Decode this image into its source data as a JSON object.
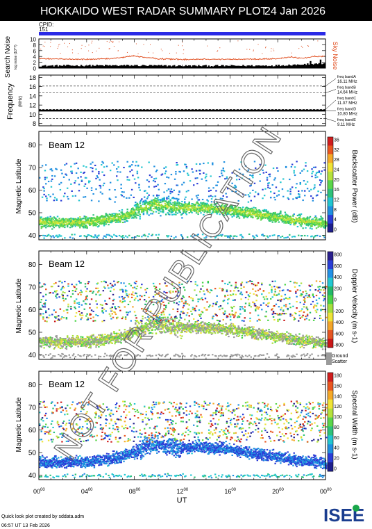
{
  "header": {
    "title": "HOKKAIDO WEST RADAR SUMMARY PLOT",
    "date": "24 Jan 2026",
    "cpid_label": "CPID:",
    "cpid_value": "151"
  },
  "watermark": "NOT FOR PUBLICATION",
  "colors": {
    "cpid_bar": "#2a2ae6",
    "noise_sky": "#e04a1a",
    "noise_search": "#000000",
    "ground_scatter": "#9a9a9a"
  },
  "chart_data": [
    {
      "type": "area",
      "panel": "noise",
      "ylabel": "Search Noise",
      "ylabel_sub": "log noise (10^?)",
      "right_label": "Sky Noise",
      "yticks": [
        "0",
        "2",
        "4",
        "6",
        "8",
        "10"
      ],
      "ylim": [
        0,
        10
      ],
      "xlim": [
        0,
        24
      ],
      "series": [
        {
          "name": "Sky Noise",
          "x": [
            0,
            2,
            4,
            6,
            8,
            9,
            10,
            12,
            14,
            16,
            18,
            20,
            21,
            22,
            23,
            24
          ],
          "values": [
            3.3,
            3.1,
            3.0,
            3.2,
            4.2,
            3.6,
            3.2,
            3.0,
            3.1,
            3.0,
            3.1,
            3.2,
            3.8,
            3.4,
            3.9,
            4.1
          ]
        },
        {
          "name": "Search Noise",
          "x": [
            0,
            4,
            8,
            12,
            16,
            20,
            22,
            24
          ],
          "values": [
            0.5,
            0.6,
            0.6,
            0.5,
            0.5,
            0.6,
            1.0,
            1.2
          ]
        }
      ]
    },
    {
      "type": "line",
      "panel": "frequency",
      "ylabel": "Frequency",
      "ylabel_unit": "(MHz)",
      "yticks": [
        "8",
        "10",
        "12",
        "14",
        "16",
        "18"
      ],
      "ylim": [
        7.5,
        18.5
      ],
      "bands": [
        {
          "label": "freq bandA",
          "value": "16.11 MHz",
          "mhz": 16.11
        },
        {
          "label": "freq bandB",
          "value": "14.64 MHz",
          "mhz": 14.64
        },
        {
          "label": "freq bandC",
          "value": "11.07 MHz",
          "mhz": 11.07
        },
        {
          "label": "freq bandD",
          "value": "10.80 MHz",
          "mhz": 10.8
        },
        {
          "label": "freq bandE",
          "value": "9.11 MHz",
          "mhz": 9.11
        }
      ],
      "series": [
        {
          "x": [
            0,
            24
          ],
          "values": [
            10.8,
            10.8
          ]
        }
      ]
    },
    {
      "type": "heatmap",
      "panel": "power",
      "beam_label": "Beam 12",
      "ylabel": "Magnetic Latitude",
      "yticks": [
        "40",
        "50",
        "60",
        "70",
        "80"
      ],
      "ylim": [
        38,
        86
      ],
      "colorbar_label": "Backscatter Power (dB)",
      "colorbar_ticks": [
        "0",
        "4",
        "8",
        "12",
        "16",
        "20",
        "24",
        "28",
        "32",
        "36"
      ],
      "band_center": [
        [
          0,
          46
        ],
        [
          4,
          46
        ],
        [
          7,
          48.5
        ],
        [
          9.5,
          54
        ],
        [
          11.5,
          52.5
        ],
        [
          14,
          52.5
        ],
        [
          16,
          51.5
        ],
        [
          19,
          49
        ],
        [
          22,
          46.5
        ],
        [
          24,
          45.5
        ]
      ]
    },
    {
      "type": "heatmap",
      "panel": "velocity",
      "beam_label": "Beam 12",
      "ylabel": "Magnetic Latitude",
      "yticks": [
        "40",
        "50",
        "60",
        "70",
        "80"
      ],
      "ylim": [
        38,
        86
      ],
      "colorbar_label": "Doppler Velocity (m s-1)",
      "colorbar_ticks": [
        "800",
        "600",
        "400",
        "200",
        "0",
        "-200",
        "-400",
        "-600",
        "-800"
      ],
      "gs_label_1": "Ground",
      "gs_label_2": "Scatter"
    },
    {
      "type": "heatmap",
      "panel": "width",
      "beam_label": "Beam 12",
      "ylabel": "Magnetic Latitude",
      "yticks": [
        "40",
        "50",
        "60",
        "70",
        "80"
      ],
      "ylim": [
        38,
        86
      ],
      "colorbar_label": "Spectral Width (m s-1)",
      "colorbar_ticks": [
        "0",
        "20",
        "40",
        "60",
        "80",
        "100",
        "120",
        "140",
        "160",
        "180"
      ]
    }
  ],
  "xaxis": {
    "label": "UT",
    "ticks": [
      {
        "h": 0,
        "base": "00",
        "sup": "00"
      },
      {
        "h": 4,
        "base": "04",
        "sup": "00"
      },
      {
        "h": 8,
        "base": "08",
        "sup": "00"
      },
      {
        "h": 12,
        "base": "12",
        "sup": "00"
      },
      {
        "h": 16,
        "base": "16",
        "sup": "00"
      },
      {
        "h": 20,
        "base": "20",
        "sup": "00"
      },
      {
        "h": 24,
        "base": "00",
        "sup": "00"
      }
    ]
  },
  "footer": {
    "credit": "Quick look plot created by sddata.adm",
    "timestamp": "06:57 UT 13 Feb 2026",
    "logo_text": "ISEE"
  }
}
